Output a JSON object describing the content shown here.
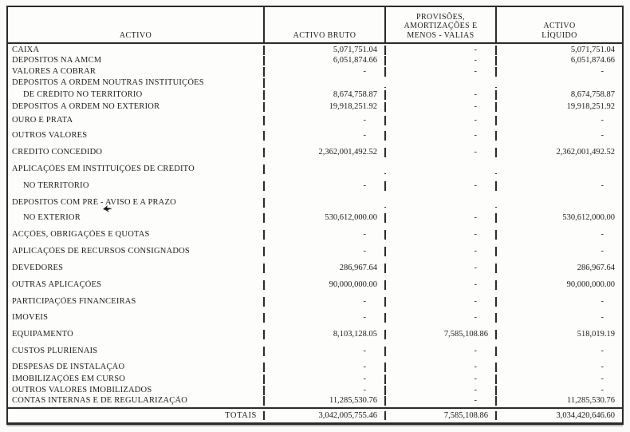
{
  "table": {
    "headers": {
      "activo": "ACTIVO",
      "activo_bruto": "ACTIVO BRUTO",
      "provisoes_lines": [
        "PROVISÕES,",
        "AMORTIZAÇÕES E",
        "MENOS - VALIAS"
      ],
      "activo_liquido_lines": [
        "ACTIVO",
        "LÍQUIDO"
      ]
    },
    "rows": [
      {
        "label": "CAIXA",
        "indent": 0,
        "bruto": "5,071,751.04",
        "provisoes": "-",
        "liquido": "5,071,751.04"
      },
      {
        "label": "DEPÓSITOS NA AMCM",
        "indent": 0,
        "bruto": "6,051,874.66",
        "provisoes": "-",
        "liquido": "6,051,874.66"
      },
      {
        "label": "VALORES A COBRAR",
        "indent": 0,
        "bruto": "-",
        "provisoes": "-",
        "liquido": "-"
      },
      {
        "label": "DEPÓSITOS À ORDEM NOUTRAS INSTITUIÇÕES",
        "indent": 0,
        "bruto": "",
        "provisoes": "",
        "liquido": ""
      },
      {
        "label": "DE CRÉDITO NO TERRITÓRIO",
        "indent": 1,
        "bruto": "8,674,758.87",
        "provisoes": "-",
        "liquido": "8,674,758.87"
      },
      {
        "label": "DEPÓSITOS À ORDEM NO EXTERIOR",
        "indent": 0,
        "bruto": "19,918,251.92",
        "provisoes": "-",
        "liquido": "19,918,251.92"
      },
      {
        "label": "OURO E PRATA",
        "indent": 0,
        "bruto": "-",
        "provisoes": "-",
        "liquido": "-"
      },
      {
        "label": "OUTROS VALORES",
        "indent": 0,
        "bruto": "-",
        "provisoes": "-",
        "liquido": "-"
      },
      {
        "label": "CRÉDITO CONCEDIDO",
        "indent": 0,
        "bruto": "2,362,001,492.52",
        "provisoes": "-",
        "liquido": "2,362,001,492.52"
      },
      {
        "label": "APLICAÇÕES EM INSTITUIÇÕES DE CRÉDITO",
        "indent": 0,
        "bruto": "",
        "provisoes": "",
        "liquido": ""
      },
      {
        "label": "NO TERRITÓRIO",
        "indent": 1,
        "bruto": "-",
        "provisoes": "-",
        "liquido": "-"
      },
      {
        "label": "DEPÓSITOS COM PRÉ - AVISO E A PRAZO",
        "indent": 0,
        "bruto": "",
        "provisoes": "",
        "liquido": ""
      },
      {
        "label": "NO EXTERIOR",
        "indent": 1,
        "bruto": "530,612,000.00",
        "provisoes": "-",
        "liquido": "530,612,000.00"
      },
      {
        "label": "ACÇÕES, OBRIGAÇÕES E QUOTAS",
        "indent": 0,
        "bruto": "-",
        "provisoes": "-",
        "liquido": "-"
      },
      {
        "label": "APLICAÇÕES DE RECURSOS CONSIGNADOS",
        "indent": 0,
        "bruto": "-",
        "provisoes": "-",
        "liquido": "-"
      },
      {
        "label": "DEVEDORES",
        "indent": 0,
        "bruto": "286,967.64",
        "provisoes": "-",
        "liquido": "286,967.64"
      },
      {
        "label": "OUTRAS APLICAÇÕES",
        "indent": 0,
        "bruto": "90,000,000.00",
        "provisoes": "-",
        "liquido": "90,000,000.00"
      },
      {
        "label": "PARTICIPAÇÕES FINANCEIRAS",
        "indent": 0,
        "bruto": "-",
        "provisoes": "-",
        "liquido": "-"
      },
      {
        "label": "IMÓVEIS",
        "indent": 0,
        "bruto": "-",
        "provisoes": "-",
        "liquido": "-"
      },
      {
        "label": "EQUIPAMENTO",
        "indent": 0,
        "bruto": "8,103,128.05",
        "provisoes": "7,585,108.86",
        "liquido": "518,019.19"
      },
      {
        "label": "CUSTOS PLURIENAIS",
        "indent": 0,
        "bruto": "-",
        "provisoes": "-",
        "liquido": "-"
      },
      {
        "label": "DESPESAS DE INSTALAÇÃO",
        "indent": 0,
        "bruto": "-",
        "provisoes": "-",
        "liquido": "-"
      },
      {
        "label": "IMOBILIZAÇÕES EM CURSO",
        "indent": 0,
        "bruto": "-",
        "provisoes": "-",
        "liquido": "-"
      },
      {
        "label": "OUTROS VALORES IMOBILIZADOS",
        "indent": 0,
        "bruto": "-",
        "provisoes": "-",
        "liquido": "-"
      },
      {
        "label": "CONTAS INTERNAS E DE REGULARIZAÇÃO",
        "indent": 0,
        "bruto": "11,285,530.76",
        "provisoes": "-",
        "liquido": "11,285,530.76"
      }
    ],
    "totals": {
      "label": "TOTAIS",
      "bruto": "3,042,005,755.46",
      "provisoes": "7,585,108.86",
      "liquido": "3,034,420,646.60"
    }
  }
}
